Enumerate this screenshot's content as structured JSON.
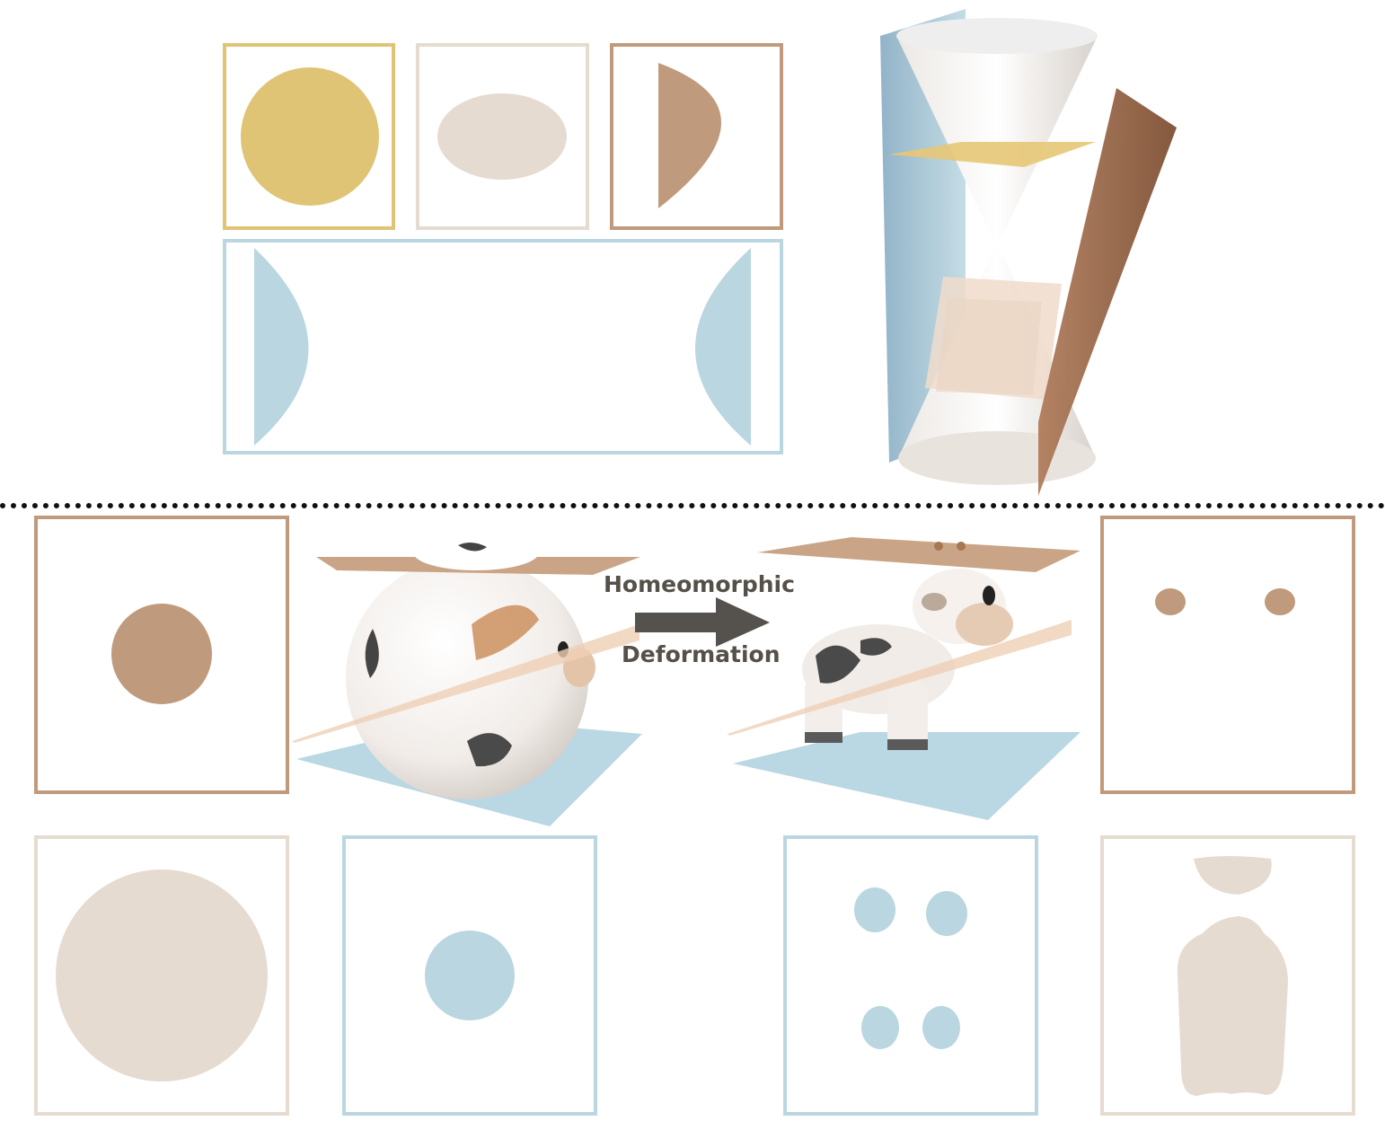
{
  "colors": {
    "yellow": "#dfc476",
    "beige": "#e5dbd1",
    "brown": "#c09a7c",
    "blue": "#bad6e0",
    "dark_brown": "#8a5a3c",
    "arrow": "#55524e",
    "divider": "#111111"
  },
  "figure": {
    "arrow_label_line1": "Homeomorphic",
    "arrow_label_line2": "Deformation"
  },
  "top": {
    "cross_sections": [
      "circle",
      "ellipse",
      "parabola",
      "hyperbola"
    ],
    "object": "double-cone"
  },
  "bottom": {
    "source_object": "cow-sphere",
    "target_object": "cow",
    "source_sections": [
      "circle",
      "circle",
      "circle"
    ],
    "target_sections": [
      "two ellipses",
      "four ellipses",
      "body and head"
    ]
  }
}
